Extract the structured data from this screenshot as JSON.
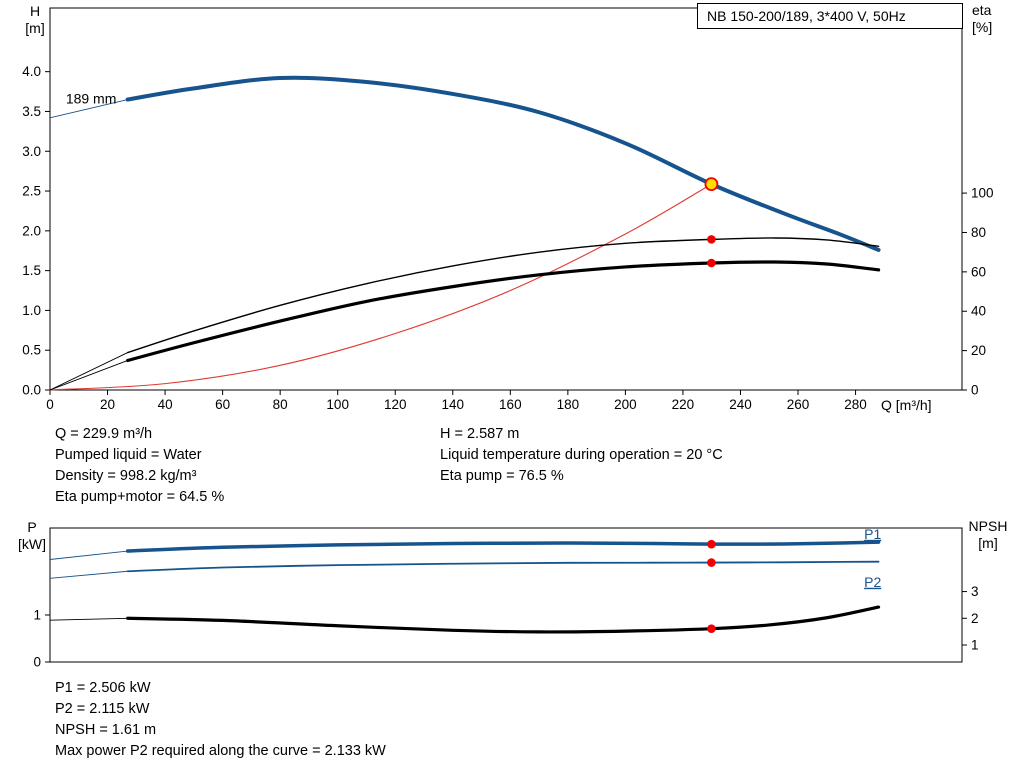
{
  "title_box": "NB 150-200/189, 3*400 V, 50Hz",
  "axes_labels": {
    "h_top": "H",
    "h_unit": "[m]",
    "eta_top": "eta",
    "eta_unit": "[%]",
    "q": "Q [m³/h]",
    "p_top": "P",
    "p_unit": "[kW]",
    "npsh_top": "NPSH",
    "npsh_unit": "[m]"
  },
  "info_top": {
    "left": [
      "Q = 229.9 m³/h",
      "Pumped liquid = Water",
      "Density = 998.2 kg/m³",
      "Eta pump+motor = 64.5 %"
    ],
    "right": [
      "H = 2.587 m",
      "Liquid temperature during operation = 20 °C",
      "Eta pump = 76.5 %"
    ]
  },
  "info_bottom": [
    "P1 = 2.506 kW",
    "P2 = 2.115 kW",
    "NPSH = 1.61 m",
    "Max power P2 required along the curve = 2.133 kW"
  ],
  "colors": {
    "curve_blue": "#17538d",
    "curve_red": "#e03a30",
    "dot_red": "#f00000",
    "duty_fill": "#ffdf00",
    "black": "#000000"
  },
  "chart_data": [
    {
      "type": "line",
      "name": "hq-eta-chart",
      "title": "NB 150-200/189, 3*400 V, 50Hz",
      "x_axis": {
        "label": "Q [m³/h]",
        "min": 0,
        "max": 317,
        "ticks": [
          0,
          20,
          40,
          60,
          80,
          100,
          120,
          140,
          160,
          180,
          200,
          220,
          240,
          260,
          280
        ],
        "show_labels": true
      },
      "y_axes": [
        {
          "id": "H",
          "side": "left",
          "label": "H [m]",
          "min": 0,
          "max": 4.8,
          "ticks": [
            0,
            0.5,
            1,
            1.5,
            2,
            2.5,
            3,
            3.5,
            4
          ],
          "format": "1dp"
        },
        {
          "id": "eta",
          "side": "right",
          "label": "eta [%]",
          "min": 0,
          "max": 194,
          "ticks": [
            0,
            20,
            40,
            60,
            80,
            100
          ]
        }
      ],
      "series": [
        {
          "name": "head-curve-189mm",
          "axis": "H",
          "color": "curve_blue",
          "width": 4,
          "lead_in": [
            [
              0,
              3.42
            ],
            [
              27,
              3.65
            ]
          ],
          "points": [
            [
              27,
              3.65
            ],
            [
              50,
              3.79
            ],
            [
              80,
              3.92
            ],
            [
              110,
              3.87
            ],
            [
              140,
              3.72
            ],
            [
              170,
              3.49
            ],
            [
              200,
              3.1
            ],
            [
              229.9,
              2.587
            ],
            [
              255,
              2.22
            ],
            [
              275,
              1.95
            ],
            [
              288,
              1.76
            ]
          ]
        },
        {
          "name": "system-curve",
          "axis": "H",
          "color": "curve_red",
          "width": 1.1,
          "points": [
            [
              0,
              0
            ],
            [
              40,
              0.08
            ],
            [
              80,
              0.31
            ],
            [
              120,
              0.71
            ],
            [
              160,
              1.25
            ],
            [
              200,
              1.96
            ],
            [
              229.9,
              2.587
            ]
          ]
        },
        {
          "name": "eta-pump-curve",
          "axis": "eta",
          "color": "black",
          "width": 1.4,
          "lead_in": [
            [
              0,
              0
            ],
            [
              27,
              19
            ]
          ],
          "points": [
            [
              27,
              19
            ],
            [
              50,
              30
            ],
            [
              80,
              43
            ],
            [
              110,
              54
            ],
            [
              140,
              63
            ],
            [
              170,
              70
            ],
            [
              200,
              74.5
            ],
            [
              229.9,
              76.5
            ],
            [
              252,
              77.2
            ],
            [
              270,
              76.2
            ],
            [
              288,
              73
            ]
          ]
        },
        {
          "name": "eta-pump-motor-curve",
          "axis": "eta",
          "color": "black",
          "width": 3.2,
          "lead_in": [
            [
              0,
              0
            ],
            [
              27,
              15
            ]
          ],
          "points": [
            [
              27,
              15
            ],
            [
              50,
              24
            ],
            [
              80,
              35
            ],
            [
              110,
              45
            ],
            [
              140,
              52.5
            ],
            [
              170,
              58.5
            ],
            [
              200,
              62.5
            ],
            [
              229.9,
              64.5
            ],
            [
              252,
              65
            ],
            [
              270,
              64
            ],
            [
              288,
              61
            ]
          ]
        }
      ],
      "markers": [
        {
          "type": "dot",
          "axis": "eta",
          "x": 229.9,
          "y": 76.5
        },
        {
          "type": "dot",
          "axis": "eta",
          "x": 229.9,
          "y": 64.5
        },
        {
          "type": "duty",
          "axis": "H",
          "x": 229.9,
          "y": 2.587
        }
      ],
      "annotations": [
        {
          "text": "189 mm",
          "axis": "H",
          "x": 5.5,
          "y": 3.6,
          "anchor": "start",
          "color": "black"
        }
      ]
    },
    {
      "type": "line",
      "name": "power-npsh-chart",
      "x_axis": {
        "label": "",
        "min": 0,
        "max": 317,
        "ticks": [],
        "show_labels": false
      },
      "y_axes": [
        {
          "id": "P",
          "side": "left",
          "label": "P [kW]",
          "min": 0,
          "max": 2.85,
          "ticks": [
            0,
            1
          ]
        },
        {
          "id": "NPSH",
          "side": "right",
          "label": "NPSH [m]",
          "min": 0.363,
          "max": 5.38,
          "ticks": [
            1,
            2,
            3
          ]
        }
      ],
      "series": [
        {
          "name": "p1-curve",
          "axis": "P",
          "color": "curve_blue",
          "width": 3.5,
          "lead_in": [
            [
              0,
              2.18
            ],
            [
              27,
              2.36
            ]
          ],
          "points": [
            [
              27,
              2.36
            ],
            [
              60,
              2.44
            ],
            [
              100,
              2.49
            ],
            [
              140,
              2.52
            ],
            [
              180,
              2.53
            ],
            [
              210,
              2.52
            ],
            [
              229.9,
              2.506
            ],
            [
              255,
              2.51
            ],
            [
              275,
              2.53
            ],
            [
              288,
              2.55
            ]
          ]
        },
        {
          "name": "p2-curve",
          "axis": "P",
          "color": "curve_blue",
          "width": 1.8,
          "lead_in": [
            [
              0,
              1.78
            ],
            [
              27,
              1.93
            ]
          ],
          "points": [
            [
              27,
              1.93
            ],
            [
              60,
              2.01
            ],
            [
              100,
              2.06
            ],
            [
              140,
              2.09
            ],
            [
              180,
              2.11
            ],
            [
              210,
              2.112
            ],
            [
              229.9,
              2.115
            ],
            [
              255,
              2.12
            ],
            [
              275,
              2.13
            ],
            [
              288,
              2.133
            ]
          ]
        },
        {
          "name": "npsh-curve",
          "axis": "NPSH",
          "color": "black",
          "width": 3.2,
          "lead_in": [
            [
              0,
              1.93
            ],
            [
              27,
              2.0
            ]
          ],
          "points": [
            [
              27,
              2.0
            ],
            [
              60,
              1.92
            ],
            [
              100,
              1.72
            ],
            [
              140,
              1.55
            ],
            [
              170,
              1.49
            ],
            [
              200,
              1.52
            ],
            [
              229.9,
              1.61
            ],
            [
              250,
              1.75
            ],
            [
              270,
              2.02
            ],
            [
              288,
              2.42
            ]
          ]
        }
      ],
      "markers": [
        {
          "type": "dot",
          "axis": "P",
          "x": 229.9,
          "y": 2.506
        },
        {
          "type": "dot",
          "axis": "P",
          "x": 229.9,
          "y": 2.115
        },
        {
          "type": "dot",
          "axis": "NPSH",
          "x": 229.9,
          "y": 1.61
        }
      ],
      "annotations": [
        {
          "text": "P1",
          "axis": "P",
          "x": 283,
          "y": 2.62,
          "anchor": "start",
          "color": "curve_blue",
          "underline": true
        },
        {
          "text": "P2",
          "axis": "P",
          "x": 283,
          "y": 1.6,
          "anchor": "start",
          "color": "curve_blue",
          "underline": true
        }
      ]
    }
  ]
}
